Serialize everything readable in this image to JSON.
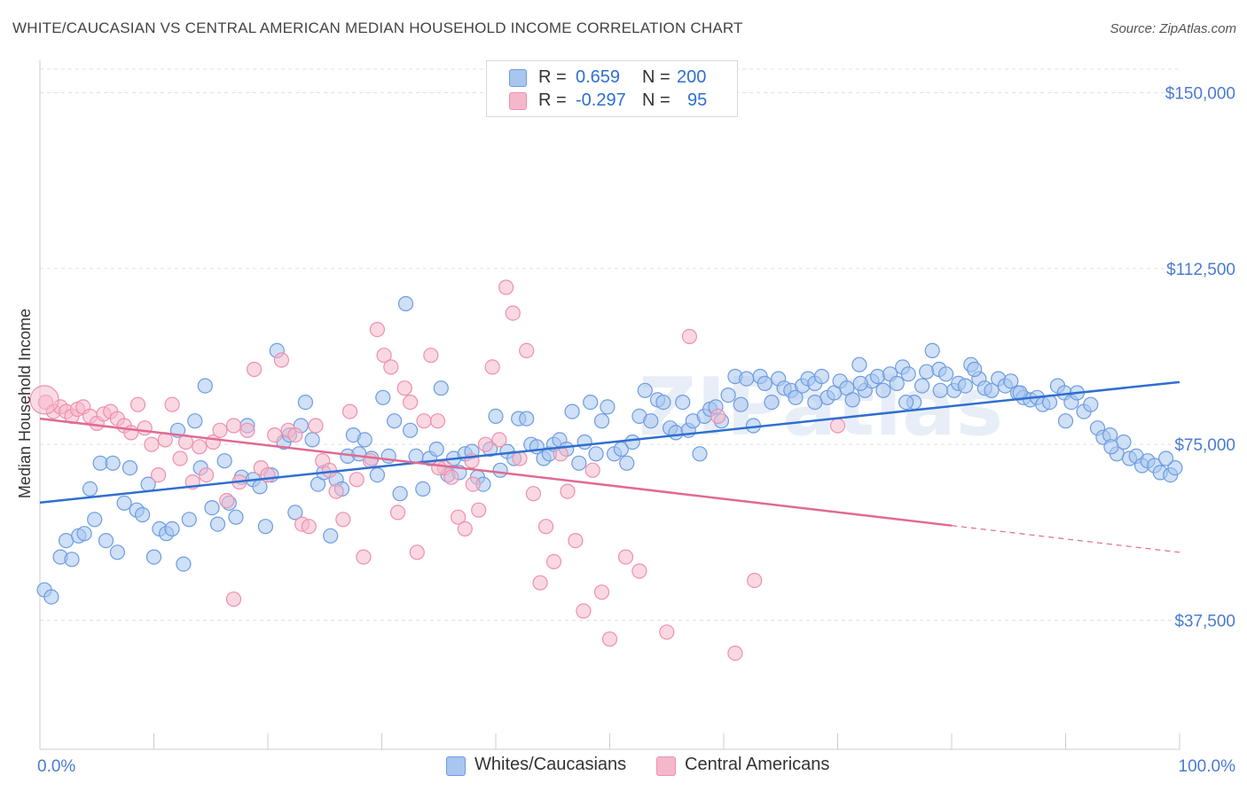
{
  "header": {
    "title": "WHITE/CAUCASIAN VS CENTRAL AMERICAN MEDIAN HOUSEHOLD INCOME CORRELATION CHART",
    "source": "Source: ZipAtlas.com"
  },
  "legend": {
    "rows": [
      {
        "r_label": "R =",
        "r_value": "0.659",
        "n_label": "N =",
        "n_value": "200",
        "color": "#a8c6f0"
      },
      {
        "r_label": "R =",
        "r_value": "-0.297",
        "n_label": "N =",
        "n_value": "95",
        "color": "#f5b8cb"
      }
    ]
  },
  "bottom_legend": {
    "items": [
      {
        "label": "Whites/Caucasians",
        "color": "#a8c6f0"
      },
      {
        "label": "Central Americans",
        "color": "#f5b8cb"
      }
    ]
  },
  "chart_data": {
    "type": "scatter",
    "title": "WHITE/CAUCASIAN VS CENTRAL AMERICAN MEDIAN HOUSEHOLD INCOME CORRELATION CHART",
    "xlabel": "",
    "ylabel": "Median Household Income",
    "xlim": [
      0,
      100
    ],
    "ylim": [
      10000,
      155000
    ],
    "x_tick_labels": [
      "0.0%",
      "100.0%"
    ],
    "y_ticks": [
      37500,
      75000,
      112500,
      150000
    ],
    "y_tick_labels": [
      "$37,500",
      "$75,000",
      "$112,500",
      "$150,000"
    ],
    "grid": true,
    "watermark": "ZIPatlas",
    "series": [
      {
        "name": "Whites/Caucasians",
        "color": "#6d9ce0",
        "fill": "#a8c6f0",
        "trend": {
          "x": [
            0,
            100
          ],
          "y": [
            62600,
            88300
          ],
          "color": "#2f6fd0"
        },
        "points": [
          [
            0.4,
            44000
          ],
          [
            1,
            42500
          ],
          [
            1.8,
            51000
          ],
          [
            2.3,
            54500
          ],
          [
            2.8,
            50500
          ],
          [
            3.4,
            55500
          ],
          [
            3.9,
            56000
          ],
          [
            4.4,
            65500
          ],
          [
            4.8,
            59000
          ],
          [
            5.3,
            71000
          ],
          [
            5.8,
            54500
          ],
          [
            6.4,
            71000
          ],
          [
            6.8,
            52000
          ],
          [
            7.4,
            62500
          ],
          [
            7.9,
            70000
          ],
          [
            8.5,
            61000
          ],
          [
            9,
            60000
          ],
          [
            9.5,
            66500
          ],
          [
            10,
            51000
          ],
          [
            10.5,
            57000
          ],
          [
            11.1,
            56000
          ],
          [
            11.6,
            57000
          ],
          [
            12.1,
            78000
          ],
          [
            12.6,
            49500
          ],
          [
            13.1,
            59000
          ],
          [
            13.6,
            80000
          ],
          [
            14.1,
            70000
          ],
          [
            14.5,
            87500
          ],
          [
            15.1,
            61500
          ],
          [
            15.6,
            58000
          ],
          [
            16.2,
            71500
          ],
          [
            16.6,
            62500
          ],
          [
            17.2,
            59500
          ],
          [
            17.7,
            68000
          ],
          [
            18.2,
            79000
          ],
          [
            18.7,
            67500
          ],
          [
            19.3,
            66000
          ],
          [
            19.8,
            57500
          ],
          [
            20.3,
            68500
          ],
          [
            20.8,
            95000
          ],
          [
            21.4,
            75500
          ],
          [
            21.9,
            77000
          ],
          [
            22.4,
            60500
          ],
          [
            22.9,
            79000
          ],
          [
            23.3,
            84000
          ],
          [
            23.9,
            76000
          ],
          [
            24.4,
            66500
          ],
          [
            24.9,
            69000
          ],
          [
            25.5,
            55500
          ],
          [
            26,
            67500
          ],
          [
            26.5,
            65500
          ],
          [
            27,
            72500
          ],
          [
            27.5,
            77000
          ],
          [
            28,
            73000
          ],
          [
            28.5,
            76000
          ],
          [
            29.1,
            72000
          ],
          [
            29.6,
            68500
          ],
          [
            30.1,
            85000
          ],
          [
            30.6,
            72500
          ],
          [
            31.1,
            80000
          ],
          [
            31.6,
            64500
          ],
          [
            32.1,
            105000
          ],
          [
            32.5,
            78000
          ],
          [
            33,
            72500
          ],
          [
            33.6,
            65500
          ],
          [
            34.2,
            72000
          ],
          [
            34.8,
            74000
          ],
          [
            35.2,
            87000
          ],
          [
            35.8,
            68500
          ],
          [
            36.3,
            72000
          ],
          [
            36.8,
            69000
          ],
          [
            37.3,
            73000
          ],
          [
            37.9,
            73500
          ],
          [
            38.4,
            68000
          ],
          [
            38.9,
            66500
          ],
          [
            39.5,
            74000
          ],
          [
            40,
            81000
          ],
          [
            40.4,
            69500
          ],
          [
            41,
            73500
          ],
          [
            41.6,
            72000
          ],
          [
            42,
            80500
          ],
          [
            42.7,
            80500
          ],
          [
            43.1,
            75000
          ],
          [
            43.6,
            74500
          ],
          [
            44.2,
            72000
          ],
          [
            44.7,
            73000
          ],
          [
            45.1,
            75000
          ],
          [
            45.6,
            76000
          ],
          [
            46.2,
            74000
          ],
          [
            46.7,
            82000
          ],
          [
            47.3,
            71000
          ],
          [
            47.8,
            75500
          ],
          [
            48.3,
            84000
          ],
          [
            48.8,
            73000
          ],
          [
            49.3,
            80000
          ],
          [
            49.8,
            83000
          ],
          [
            50.4,
            73000
          ],
          [
            51.0,
            74000
          ],
          [
            51.5,
            71000
          ],
          [
            52.0,
            75500
          ],
          [
            52.6,
            81000
          ],
          [
            53.1,
            86500
          ],
          [
            53.6,
            80000
          ],
          [
            54.2,
            84500
          ],
          [
            54.7,
            84000
          ],
          [
            55.3,
            78500
          ],
          [
            55.8,
            77500
          ],
          [
            56.4,
            84000
          ],
          [
            56.9,
            78000
          ],
          [
            57.3,
            80000
          ],
          [
            57.9,
            73000
          ],
          [
            58.3,
            81000
          ],
          [
            58.8,
            82500
          ],
          [
            59.3,
            83000
          ],
          [
            59.8,
            80000
          ],
          [
            60.4,
            85500
          ],
          [
            61,
            89500
          ],
          [
            61.5,
            83500
          ],
          [
            62,
            89000
          ],
          [
            62.6,
            79000
          ],
          [
            63.2,
            89500
          ],
          [
            63.6,
            88000
          ],
          [
            64.2,
            84000
          ],
          [
            64.8,
            89000
          ],
          [
            65.3,
            87000
          ],
          [
            65.9,
            86500
          ],
          [
            66.3,
            85000
          ],
          [
            66.9,
            87500
          ],
          [
            67.4,
            89000
          ],
          [
            68,
            88000
          ],
          [
            68.6,
            89500
          ],
          [
            69.1,
            85000
          ],
          [
            69.7,
            86000
          ],
          [
            70.2,
            88500
          ],
          [
            70.8,
            87000
          ],
          [
            71.3,
            84500
          ],
          [
            71.9,
            92000
          ],
          [
            72.4,
            86500
          ],
          [
            73.0,
            88500
          ],
          [
            73.5,
            89500
          ],
          [
            74.0,
            86500
          ],
          [
            74.6,
            90000
          ],
          [
            75.2,
            88000
          ],
          [
            75.7,
            91500
          ],
          [
            76.2,
            90000
          ],
          [
            76.7,
            84000
          ],
          [
            77.4,
            87500
          ],
          [
            77.8,
            90500
          ],
          [
            78.3,
            95000
          ],
          [
            78.9,
            91000
          ],
          [
            79.5,
            90000
          ],
          [
            80.2,
            86500
          ],
          [
            80.6,
            88000
          ],
          [
            81.2,
            87500
          ],
          [
            81.7,
            92000
          ],
          [
            82.4,
            89000
          ],
          [
            82.9,
            87000
          ],
          [
            83.5,
            86500
          ],
          [
            84.1,
            89000
          ],
          [
            84.7,
            87500
          ],
          [
            85.2,
            88500
          ],
          [
            85.8,
            86000
          ],
          [
            86.3,
            85000
          ],
          [
            86.9,
            84500
          ],
          [
            87.5,
            85000
          ],
          [
            88,
            83500
          ],
          [
            88.6,
            84000
          ],
          [
            89.3,
            87500
          ],
          [
            89.9,
            86000
          ],
          [
            90.5,
            84000
          ],
          [
            91,
            86000
          ],
          [
            91.6,
            82000
          ],
          [
            92.2,
            83500
          ],
          [
            92.8,
            78500
          ],
          [
            93.3,
            76500
          ],
          [
            93.9,
            77000
          ],
          [
            94.5,
            73000
          ],
          [
            95.1,
            75500
          ],
          [
            95.6,
            72000
          ],
          [
            96.2,
            72500
          ],
          [
            96.7,
            70500
          ],
          [
            97.2,
            71500
          ],
          [
            97.8,
            70500
          ],
          [
            98.3,
            69000
          ],
          [
            99.2,
            68500
          ],
          [
            99.6,
            70000
          ],
          [
            98.8,
            72000
          ],
          [
            94.0,
            74500
          ],
          [
            90.0,
            80000
          ],
          [
            86.0,
            86000
          ],
          [
            82.0,
            91000
          ],
          [
            79.0,
            86500
          ],
          [
            76.0,
            84000
          ],
          [
            72.0,
            88000
          ],
          [
            68.0,
            84000
          ]
        ]
      },
      {
        "name": "Central Americans",
        "color": "#ef8fae",
        "fill": "#f5b8cb",
        "trend": {
          "x": [
            0,
            80
          ],
          "y": [
            80500,
            57700
          ],
          "color": "#e06a93"
        },
        "trend_dashed": {
          "x": [
            80,
            100
          ],
          "y": [
            57700,
            52000
          ]
        },
        "points": [
          [
            0.5,
            84000
          ],
          [
            1.2,
            82000
          ],
          [
            1.8,
            83000
          ],
          [
            2.3,
            82000
          ],
          [
            2.8,
            81000
          ],
          [
            3.3,
            82500
          ],
          [
            3.8,
            83000
          ],
          [
            4.4,
            81000
          ],
          [
            5,
            79500
          ],
          [
            5.6,
            81500
          ],
          [
            6.2,
            82000
          ],
          [
            6.8,
            80500
          ],
          [
            7.4,
            79000
          ],
          [
            8,
            77500
          ],
          [
            8.6,
            83500
          ],
          [
            9.2,
            78500
          ],
          [
            9.8,
            75000
          ],
          [
            10.4,
            68500
          ],
          [
            11,
            76000
          ],
          [
            11.6,
            83500
          ],
          [
            12.3,
            72000
          ],
          [
            12.8,
            75500
          ],
          [
            13.4,
            67000
          ],
          [
            14,
            74500
          ],
          [
            14.6,
            68500
          ],
          [
            15.2,
            75500
          ],
          [
            15.8,
            78000
          ],
          [
            16.4,
            63000
          ],
          [
            17,
            79000
          ],
          [
            17.5,
            67000
          ],
          [
            18.2,
            78000
          ],
          [
            18.8,
            91000
          ],
          [
            19.4,
            70000
          ],
          [
            20,
            68500
          ],
          [
            20.6,
            77000
          ],
          [
            21.2,
            93000
          ],
          [
            21.8,
            78000
          ],
          [
            22.4,
            77000
          ],
          [
            23,
            58000
          ],
          [
            23.6,
            57500
          ],
          [
            24.2,
            79000
          ],
          [
            24.8,
            71500
          ],
          [
            25.4,
            69500
          ],
          [
            26,
            65000
          ],
          [
            26.6,
            59000
          ],
          [
            27.2,
            82000
          ],
          [
            27.8,
            67500
          ],
          [
            28.4,
            51000
          ],
          [
            29,
            71500
          ],
          [
            29.6,
            99500
          ],
          [
            30.2,
            94000
          ],
          [
            30.8,
            91500
          ],
          [
            31.4,
            60500
          ],
          [
            32,
            87000
          ],
          [
            32.5,
            84000
          ],
          [
            33.1,
            52000
          ],
          [
            33.7,
            80000
          ],
          [
            34.3,
            94000
          ],
          [
            34.9,
            80000
          ],
          [
            35.5,
            70000
          ],
          [
            36.1,
            68000
          ],
          [
            36.7,
            59500
          ],
          [
            37.3,
            57000
          ],
          [
            37.9,
            71500
          ],
          [
            38.5,
            61000
          ],
          [
            39.1,
            75000
          ],
          [
            39.7,
            91500
          ],
          [
            40.3,
            76000
          ],
          [
            40.9,
            108500
          ],
          [
            41.5,
            103000
          ],
          [
            42.1,
            72000
          ],
          [
            42.7,
            95000
          ],
          [
            43.3,
            64500
          ],
          [
            43.9,
            45500
          ],
          [
            44.4,
            57500
          ],
          [
            45.1,
            50000
          ],
          [
            45.7,
            73000
          ],
          [
            46.3,
            65000
          ],
          [
            47.0,
            54500
          ],
          [
            47.7,
            39500
          ],
          [
            48.5,
            69500
          ],
          [
            49.3,
            43500
          ],
          [
            50.0,
            33500
          ],
          [
            51.4,
            51000
          ],
          [
            52.6,
            48000
          ],
          [
            55.0,
            35000
          ],
          [
            57.0,
            98000
          ],
          [
            59.5,
            81000
          ],
          [
            61.0,
            30500
          ],
          [
            62.7,
            46000
          ],
          [
            70.0,
            79000
          ],
          [
            17.0,
            42000
          ],
          [
            35.0,
            70000
          ],
          [
            38.0,
            66500
          ]
        ]
      }
    ]
  }
}
